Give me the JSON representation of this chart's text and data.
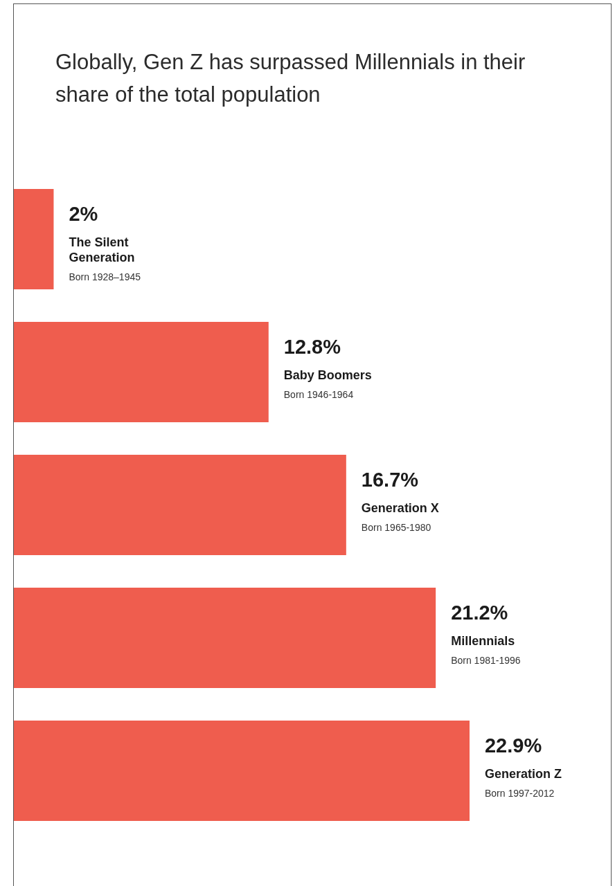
{
  "chart_data": {
    "type": "bar",
    "orientation": "horizontal",
    "title": "Globally, Gen Z has surpassed Millennials in their share of the total population",
    "categories": [
      "The Silent Generation",
      "Baby Boomers",
      "Generation X",
      "Millennials",
      "Generation Z"
    ],
    "values": [
      2,
      12.8,
      16.7,
      21.2,
      22.9
    ],
    "value_labels": [
      "2%",
      "12.8%",
      "16.7%",
      "21.2%",
      "22.9%"
    ],
    "color": "#ef5d4e",
    "xlim": [
      0,
      30
    ],
    "tick_labels": false,
    "annotations": [
      "Born 1928–1945",
      "Born 1946-1964",
      "Born 1965-1980",
      "Born 1981-1996",
      "Born 1997-2012"
    ]
  }
}
